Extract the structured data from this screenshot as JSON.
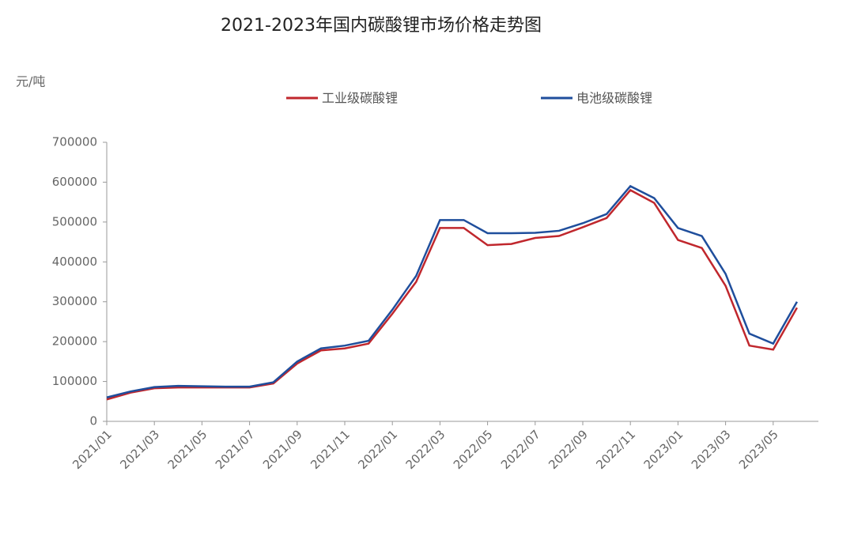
{
  "chart_data": {
    "type": "line",
    "title": "2021-2023年国内碳酸锂市场价格走势图",
    "y_label": "元/吨",
    "categories": [
      "2021/01",
      null,
      "2021/03",
      null,
      "2021/05",
      null,
      "2021/07",
      null,
      "2021/09",
      null,
      "2021/11",
      null,
      "2022/01",
      null,
      "2022/03",
      null,
      "2022/05",
      null,
      "2022/07",
      null,
      "2022/09",
      null,
      "2022/11",
      null,
      "2023/01",
      null,
      "2023/03",
      null,
      "2023/05",
      null
    ],
    "series": [
      {
        "name": "工业级碳酸锂",
        "color": "#c0272d",
        "values": [
          55000,
          72000,
          83000,
          85000,
          85000,
          85000,
          85000,
          95000,
          145000,
          178000,
          183000,
          195000,
          270000,
          350000,
          485000,
          485000,
          442000,
          445000,
          460000,
          465000,
          487000,
          510000,
          580000,
          548000,
          455000,
          435000,
          340000,
          190000,
          180000,
          285000
        ]
      },
      {
        "name": "电池级碳酸锂",
        "color": "#1f4e9c",
        "values": [
          60000,
          75000,
          86000,
          89000,
          88000,
          87000,
          87000,
          98000,
          150000,
          183000,
          190000,
          202000,
          280000,
          365000,
          505000,
          505000,
          472000,
          472000,
          473000,
          478000,
          497000,
          520000,
          590000,
          560000,
          485000,
          465000,
          370000,
          220000,
          195000,
          300000
        ]
      }
    ],
    "ylim": [
      0,
      700000
    ],
    "yticks": [
      0,
      100000,
      200000,
      300000,
      400000,
      500000,
      600000,
      700000
    ],
    "grid": false
  }
}
